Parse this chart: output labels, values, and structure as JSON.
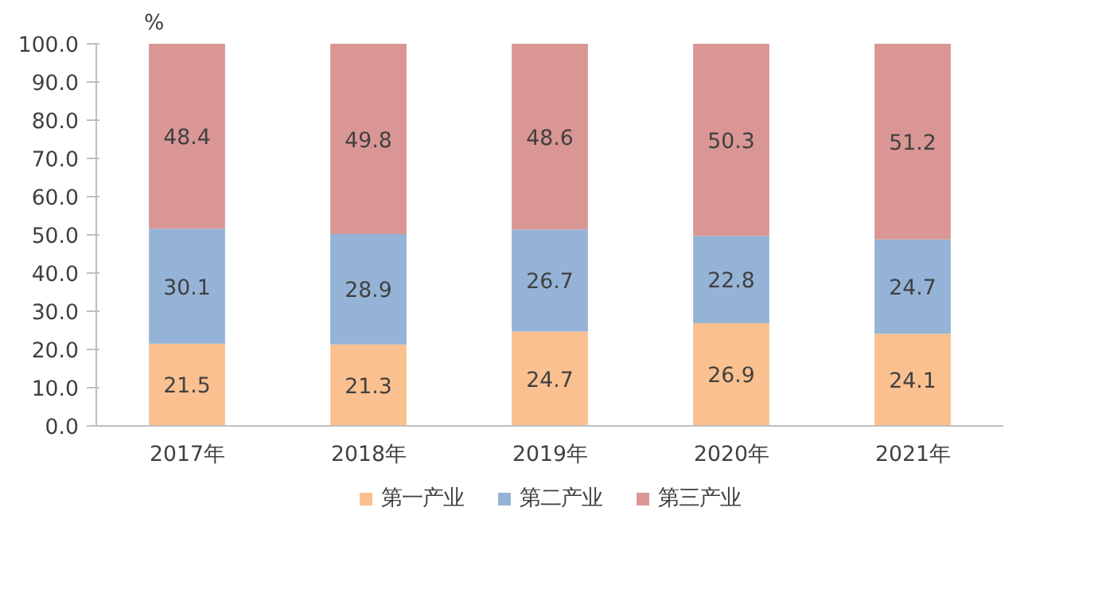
{
  "chart_data": {
    "type": "bar",
    "stacked": true,
    "ylabel": "%",
    "categories": [
      "2017年",
      "2018年",
      "2019年",
      "2020年",
      "2021年"
    ],
    "series": [
      {
        "name": "第一产业",
        "color": "#fac090",
        "values": [
          21.5,
          21.3,
          24.7,
          26.9,
          24.1
        ]
      },
      {
        "name": "第二产业",
        "color": "#95b3d7",
        "values": [
          30.1,
          28.9,
          26.7,
          22.8,
          24.7
        ]
      },
      {
        "name": "第三产业",
        "color": "#d99694",
        "values": [
          48.4,
          49.8,
          48.6,
          50.3,
          51.2
        ]
      }
    ],
    "ylim": [
      0,
      100
    ],
    "yticks": [
      {
        "value": 0,
        "label": "0.0"
      },
      {
        "value": 10,
        "label": "10.0"
      },
      {
        "value": 20,
        "label": "20.0"
      },
      {
        "value": 30,
        "label": "30.0"
      },
      {
        "value": 40,
        "label": "40.0"
      },
      {
        "value": 50,
        "label": "50.0"
      },
      {
        "value": 60,
        "label": "60.0"
      },
      {
        "value": 70,
        "label": "70.0"
      },
      {
        "value": 80,
        "label": "80.0"
      },
      {
        "value": 90,
        "label": "90.0"
      },
      {
        "value": 100,
        "label": "100.0"
      }
    ],
    "grid": false,
    "legend": "bottom",
    "data_labels": true
  }
}
